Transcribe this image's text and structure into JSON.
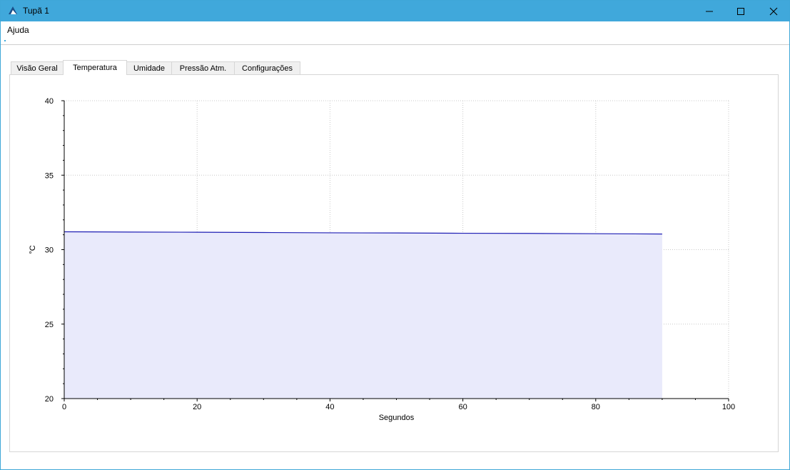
{
  "window": {
    "title": "Tupã 1",
    "buttons": {
      "minimize": "minimize-icon",
      "maximize": "maximize-icon",
      "close": "close-icon"
    }
  },
  "menu": {
    "items": [
      "Ajuda"
    ]
  },
  "tabs": [
    {
      "label": "Visão Geral",
      "active": false
    },
    {
      "label": "Temperatura",
      "active": true
    },
    {
      "label": "Umidade",
      "active": false
    },
    {
      "label": "Pressão Atm.",
      "active": false
    },
    {
      "label": "Configurações",
      "active": false
    }
  ],
  "colors": {
    "titlebar": "#40a8db",
    "series_line": "#1f1fb4",
    "series_fill": "#e9eafb",
    "grid": "#c8c8c8"
  },
  "chart_data": {
    "type": "area",
    "xlabel": "Segundos",
    "ylabel": "°C",
    "xlim": [
      0,
      100
    ],
    "ylim": [
      20,
      40
    ],
    "xticks": [
      0,
      20,
      40,
      60,
      80,
      100
    ],
    "yticks": [
      20,
      25,
      30,
      35,
      40
    ],
    "grid": true,
    "series": [
      {
        "x": [
          0,
          10,
          20,
          30,
          40,
          50,
          60,
          70,
          80,
          90
        ],
        "y": [
          31.2,
          31.18,
          31.17,
          31.15,
          31.13,
          31.12,
          31.1,
          31.09,
          31.07,
          31.05
        ]
      }
    ]
  }
}
